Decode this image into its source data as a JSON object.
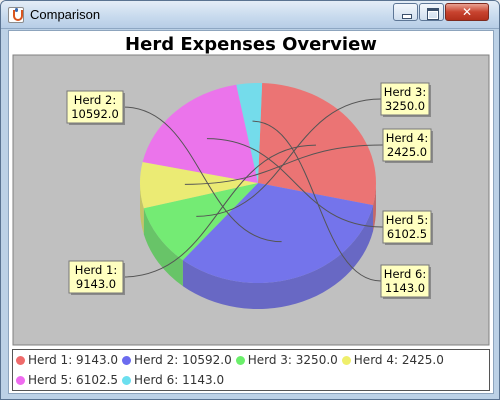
{
  "window": {
    "title": "Comparison",
    "close_label": "✕"
  },
  "chart_data": {
    "type": "pie",
    "title": "Herd Expenses Overview",
    "three_d": true,
    "legend_placement": "bottom",
    "plot_background": "#c0c0c0",
    "series": [
      {
        "name": "Herd 1",
        "value": 9143.0,
        "value_label": "9143.0",
        "color": "#ef6b6b"
      },
      {
        "name": "Herd 2",
        "value": 10592.0,
        "value_label": "10592.0",
        "color": "#6b6bef"
      },
      {
        "name": "Herd 3",
        "value": 3250.0,
        "value_label": "3250.0",
        "color": "#6bef6b"
      },
      {
        "name": "Herd 4",
        "value": 2425.0,
        "value_label": "2425.0",
        "color": "#efef6b"
      },
      {
        "name": "Herd 5",
        "value": 6102.5,
        "value_label": "6102.5",
        "color": "#ef6bef"
      },
      {
        "name": "Herd 6",
        "value": 1143.0,
        "value_label": "1143.0",
        "color": "#6bdfef"
      }
    ]
  }
}
